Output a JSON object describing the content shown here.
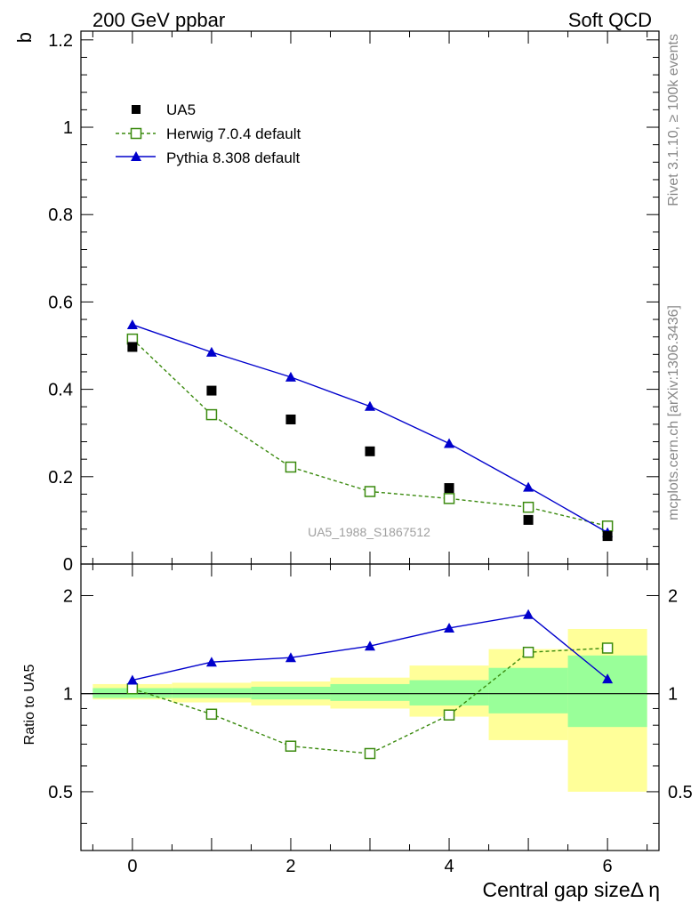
{
  "header": {
    "left": "200 GeV ppbar",
    "right": "Soft QCD"
  },
  "side_labels": {
    "rivet": "Rivet 3.1.10, ≥ 100k events",
    "mcplots": "mcplots.cern.ch [arXiv:1306.3436]"
  },
  "watermark": "UA5_1988_S1867512",
  "chart_data": [
    {
      "type": "line",
      "panel": "main",
      "ylabel": "b",
      "xlabel": "Central gap sizeΔ η",
      "xlim": [
        -0.65,
        6.65
      ],
      "ylim": [
        0,
        1.22
      ],
      "yticks": [
        0,
        0.2,
        0.4,
        0.6,
        0.8,
        1,
        1.2
      ],
      "ytick_labels": [
        "0",
        "0.2",
        "0.4",
        "0.6",
        "0.8",
        "1",
        "1.2"
      ],
      "xticks": [
        0,
        2,
        4,
        6
      ],
      "x": [
        0,
        1,
        2,
        3,
        4,
        5,
        6
      ],
      "legend_position": "top-left",
      "series": [
        {
          "name": "UA5",
          "marker": "filled-square",
          "color": "#000000",
          "values": [
            0.497,
            0.397,
            0.331,
            0.258,
            0.174,
            0.101,
            0.064
          ]
        },
        {
          "name": "Herwig 7.0.4 default",
          "marker": "open-square",
          "line": "dashed",
          "color": "#3a8a0e",
          "values": [
            0.515,
            0.342,
            0.222,
            0.166,
            0.15,
            0.13,
            0.087
          ]
        },
        {
          "name": "Pythia 8.308 default",
          "marker": "filled-triangle",
          "line": "solid",
          "color": "#0000cc",
          "values": [
            0.548,
            0.485,
            0.428,
            0.361,
            0.276,
            0.176,
            0.072
          ]
        }
      ]
    },
    {
      "type": "line",
      "panel": "ratio",
      "ylabel": "Ratio to UA5",
      "xlim": [
        -0.65,
        6.65
      ],
      "ylim": [
        0.33,
        2.5
      ],
      "log_y": true,
      "yticks": [
        0.5,
        1,
        2
      ],
      "ytick_labels": [
        "0.5",
        "1",
        "2"
      ],
      "xticks": [
        0,
        2,
        4,
        6
      ],
      "xtick_labels": [
        "0",
        "2",
        "4",
        "6"
      ],
      "x": [
        0,
        1,
        2,
        3,
        4,
        5,
        6
      ],
      "reference": 1,
      "uncertainty_bands": {
        "stat_color": "#99ff99",
        "total_color": "#ffff99",
        "stat_low": [
          0.97,
          0.97,
          0.96,
          0.95,
          0.92,
          0.87,
          0.79
        ],
        "stat_high": [
          1.04,
          1.04,
          1.05,
          1.07,
          1.1,
          1.2,
          1.31
        ],
        "total_low": [
          0.96,
          0.94,
          0.92,
          0.9,
          0.85,
          0.72,
          0.5
        ],
        "total_high": [
          1.07,
          1.08,
          1.09,
          1.12,
          1.22,
          1.37,
          1.58
        ]
      },
      "series": [
        {
          "name": "Herwig 7.0.4 default",
          "marker": "open-square",
          "line": "dashed",
          "color": "#3a8a0e",
          "values": [
            1.035,
            0.865,
            0.69,
            0.655,
            0.86,
            1.34,
            1.38
          ]
        },
        {
          "name": "Pythia 8.308 default",
          "marker": "filled-triangle",
          "line": "solid",
          "color": "#0000cc",
          "values": [
            1.1,
            1.25,
            1.29,
            1.4,
            1.59,
            1.75,
            1.11
          ]
        }
      ]
    }
  ]
}
